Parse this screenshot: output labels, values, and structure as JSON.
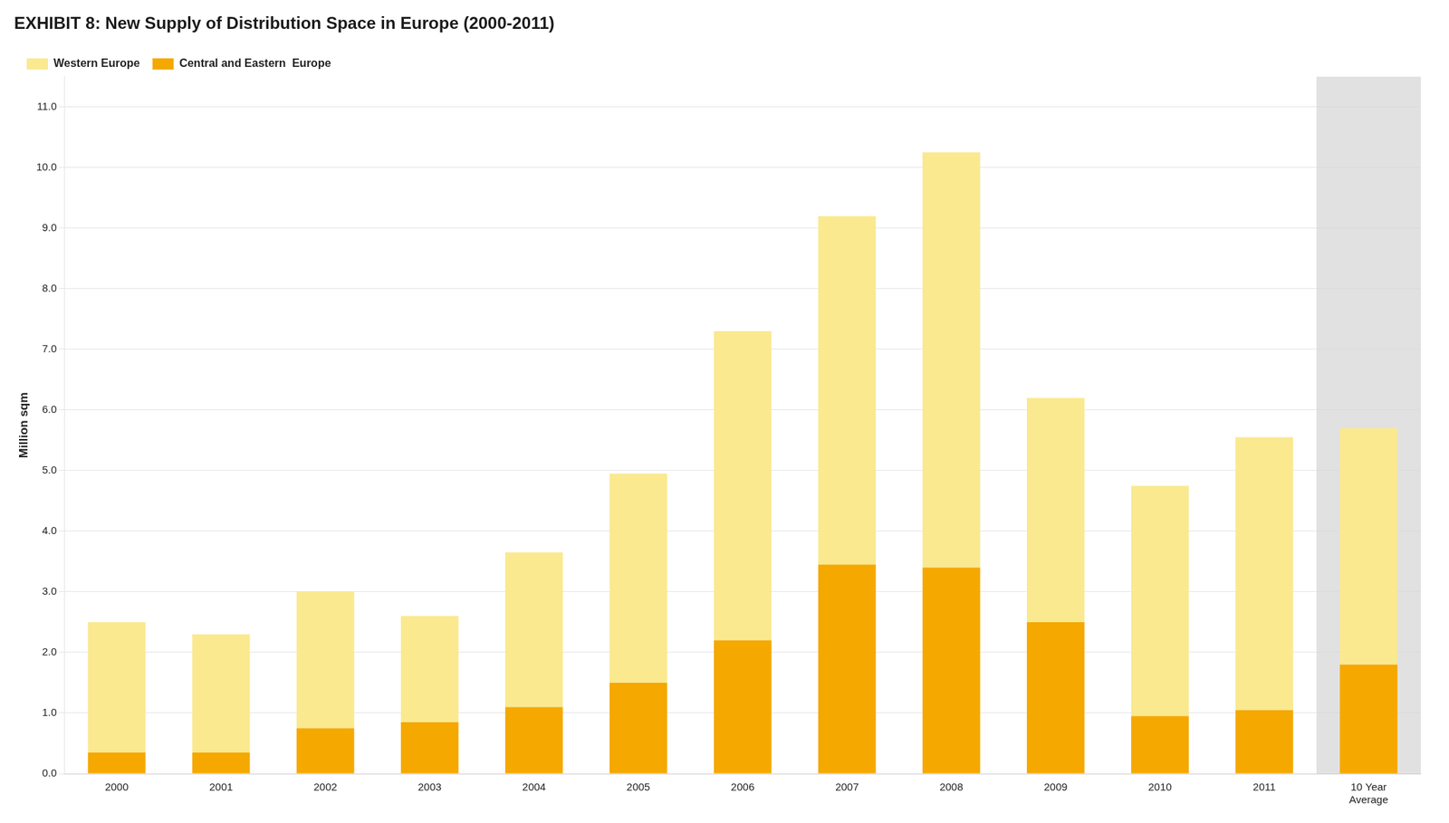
{
  "chart_data": {
    "type": "bar",
    "stacked": true,
    "title": "EXHIBIT 8: New Supply of Distribution Space in Europe (2000-2011)",
    "ylabel": "Million sqm",
    "categories": [
      "2000",
      "2001",
      "2002",
      "2003",
      "2004",
      "2005",
      "2006",
      "2007",
      "2008",
      "2009",
      "2010",
      "2011",
      "10 Year\nAverage"
    ],
    "series": [
      {
        "name": "Central and Eastern  Europe",
        "color": "#F5A800",
        "values": [
          0.35,
          0.35,
          0.75,
          0.85,
          1.1,
          1.5,
          2.2,
          3.45,
          3.4,
          2.5,
          0.95,
          1.05,
          1.8
        ]
      },
      {
        "name": "Western Europe",
        "color": "#FAE98F",
        "values": [
          2.15,
          1.95,
          2.25,
          1.75,
          2.55,
          3.45,
          5.1,
          5.75,
          6.85,
          3.7,
          3.8,
          4.5,
          3.9
        ]
      }
    ],
    "ylim": [
      0,
      11.5
    ],
    "yticks": [
      {
        "value": 0,
        "label": "0.0"
      },
      {
        "value": 1,
        "label": "1.0"
      },
      {
        "value": 2,
        "label": "2.0"
      },
      {
        "value": 3,
        "label": "3.0"
      },
      {
        "value": 4,
        "label": "4.0"
      },
      {
        "value": 5,
        "label": "5.0"
      },
      {
        "value": 6,
        "label": "6.0"
      },
      {
        "value": 7,
        "label": "7.0"
      },
      {
        "value": 8,
        "label": "8.0"
      },
      {
        "value": 9,
        "label": "9.0"
      },
      {
        "value": 10,
        "label": "10.0"
      },
      {
        "value": 11,
        "label": "11.0"
      }
    ],
    "grid": true,
    "legend": "upper left"
  }
}
